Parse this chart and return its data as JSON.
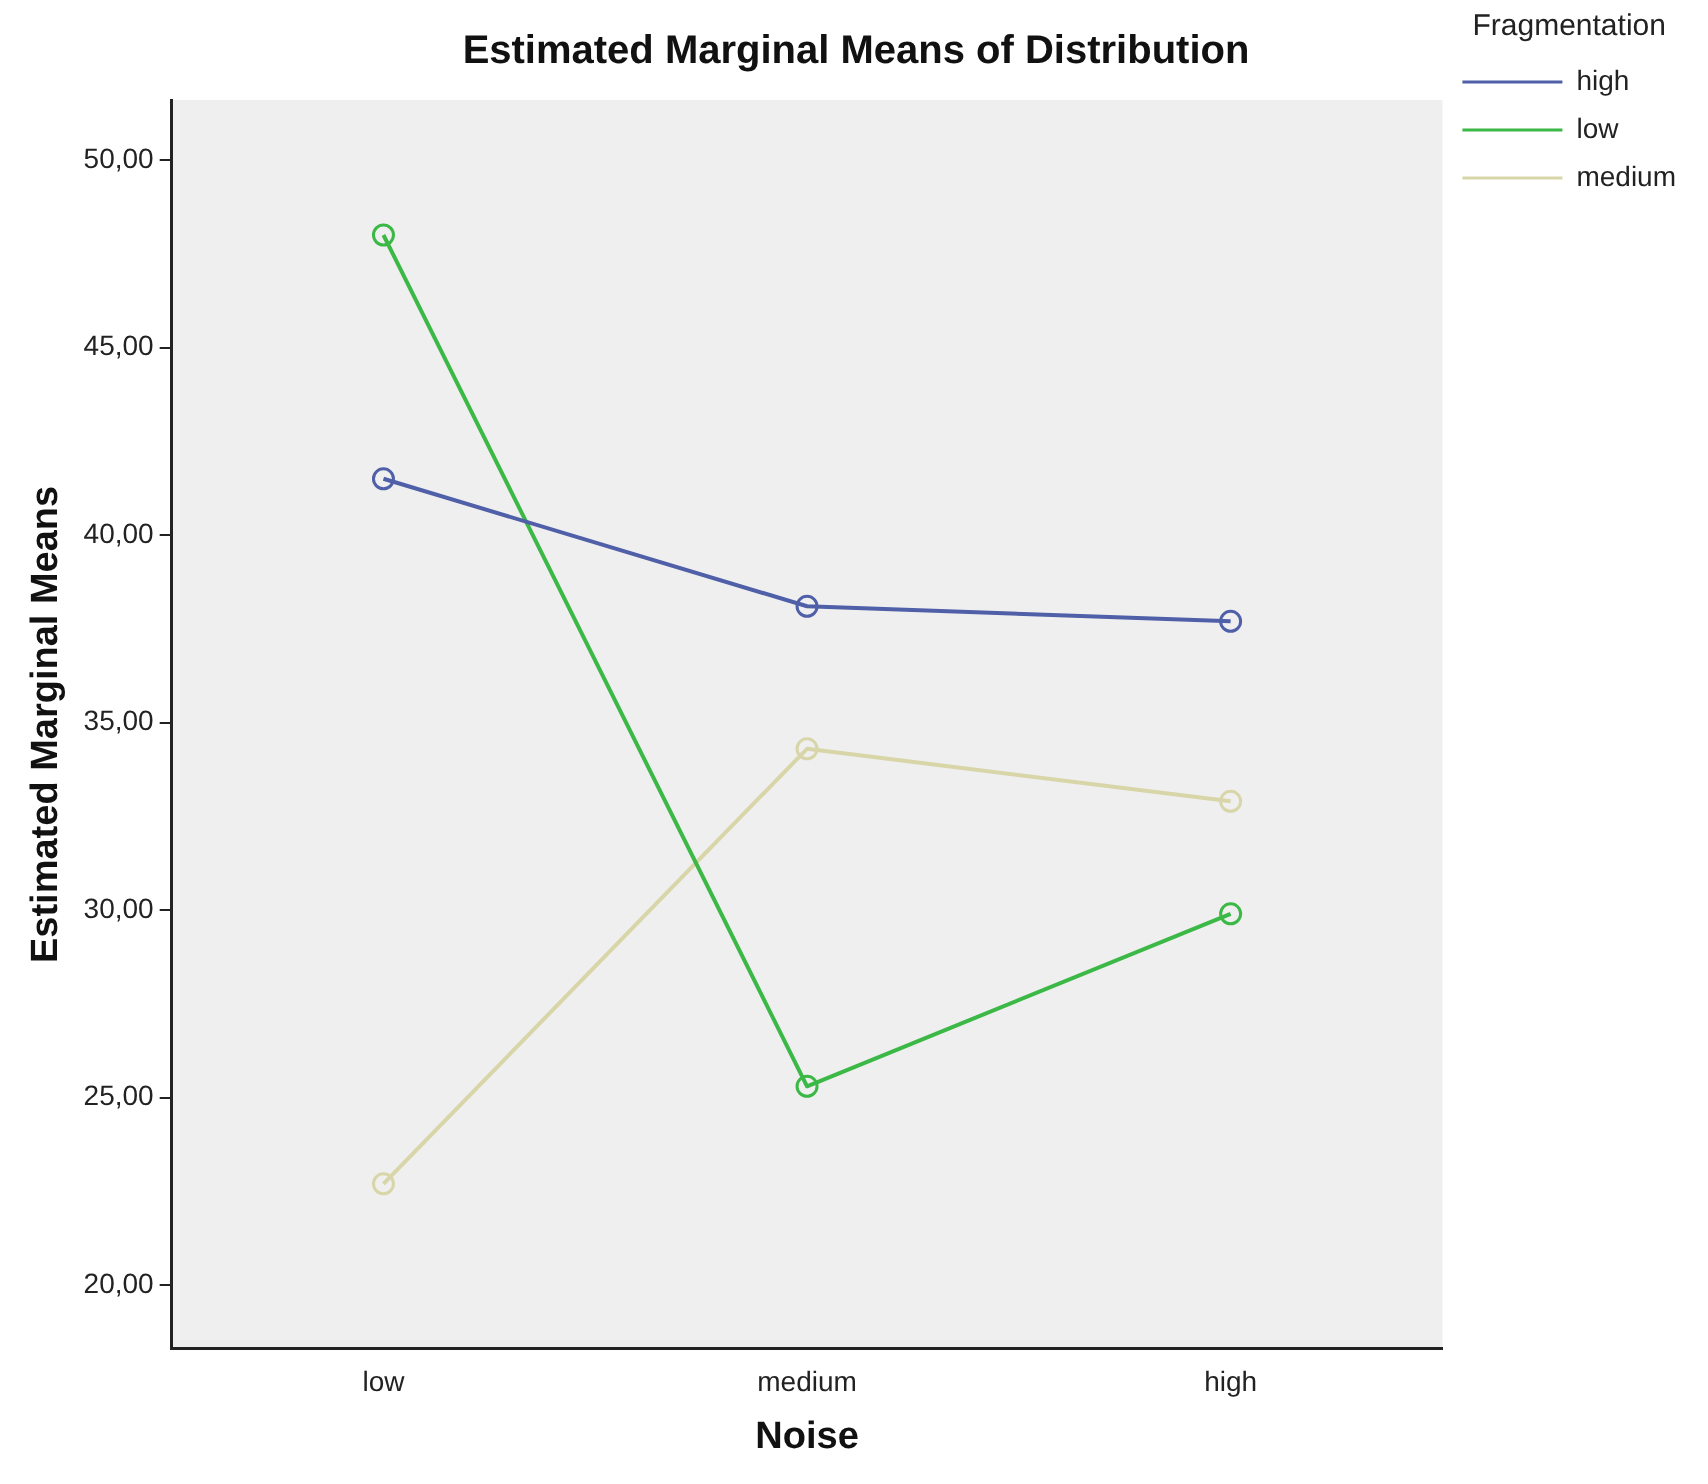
{
  "chart_data": {
    "type": "line",
    "title": "Estimated Marginal Means of Distribution",
    "xlabel": "Noise",
    "ylabel": "Estimated Marginal Means",
    "legend_title": "Fragmentation",
    "categories": [
      "low",
      "medium",
      "high"
    ],
    "series": [
      {
        "name": "high",
        "color": "#4f5fa8",
        "values": [
          41.5,
          38.1,
          37.7
        ]
      },
      {
        "name": "low",
        "color": "#3cb846",
        "values": [
          48.0,
          25.3,
          29.9
        ]
      },
      {
        "name": "medium",
        "color": "#d8d6a8",
        "values": [
          22.7,
          34.3,
          32.9
        ]
      }
    ],
    "ylim": [
      18.3,
      51.6
    ],
    "yticks": [
      {
        "value": 20,
        "label": "20,00"
      },
      {
        "value": 25,
        "label": "25,00"
      },
      {
        "value": 30,
        "label": "30,00"
      },
      {
        "value": 35,
        "label": "35,00"
      },
      {
        "value": 40,
        "label": "40,00"
      },
      {
        "value": 45,
        "label": "45,00"
      },
      {
        "value": 50,
        "label": "50,00"
      }
    ],
    "grid": false,
    "legend": "top right",
    "marker": "circle",
    "line_style": "solid"
  }
}
